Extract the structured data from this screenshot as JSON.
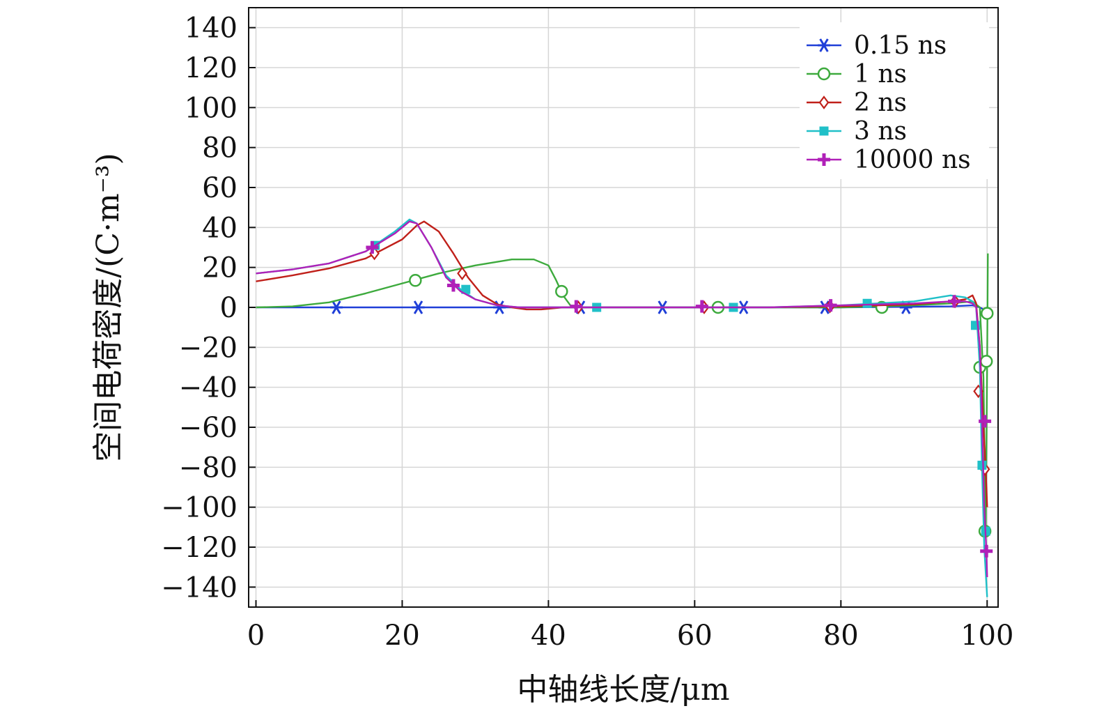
{
  "chart_data": {
    "type": "line",
    "title": "",
    "xlabel": "中轴线长度/μm",
    "ylabel": "空间电荷密度/(C·m⁻³)",
    "xlim": [
      -1,
      101.5
    ],
    "ylim": [
      -150,
      150
    ],
    "xticks": [
      0,
      20,
      40,
      60,
      80,
      100
    ],
    "yticks": [
      140,
      120,
      100,
      80,
      60,
      40,
      20,
      0,
      -20,
      -40,
      -60,
      -80,
      -100,
      -120,
      -140
    ],
    "xtick_labels": [
      "0",
      "20",
      "40",
      "60",
      "80",
      "100"
    ],
    "ytick_labels": [
      "140",
      "120",
      "100",
      "80",
      "60",
      "40",
      "20",
      "0",
      "−20",
      "−40",
      "−60",
      "−80",
      "−100",
      "−120",
      "−140"
    ],
    "grid": true,
    "legend_position": "top-right",
    "series": [
      {
        "name": "0.15 ns",
        "color": "#1f3fd8",
        "marker": "asterisk",
        "x": [
          0,
          20,
          40,
          60,
          80,
          95,
          98,
          99,
          99.5,
          100
        ],
        "y": [
          0,
          0,
          0,
          0,
          0,
          0.5,
          1,
          0,
          -1,
          0
        ],
        "markers_x": [
          11,
          22.2,
          33.3,
          44.4,
          55.6,
          66.7,
          77.8,
          88.9
        ],
        "markers_y": [
          0,
          0,
          0,
          0,
          0,
          0,
          0,
          0
        ]
      },
      {
        "name": "1 ns",
        "color": "#3daa3d",
        "marker": "circle",
        "x": [
          0,
          5,
          10,
          15,
          20,
          25,
          30,
          35,
          38,
          40,
          41,
          42,
          43,
          44,
          50,
          60,
          70,
          80,
          90,
          95,
          98,
          99,
          99.5,
          99.8,
          100,
          100.1
        ],
        "y": [
          0,
          0.5,
          2.5,
          7,
          12,
          17,
          21,
          24,
          24,
          21,
          14,
          6,
          1,
          0,
          0,
          0,
          0,
          0,
          1,
          2,
          3,
          0,
          -35,
          -112,
          -27,
          27
        ],
        "markers_x": [
          21.8,
          41.8,
          63.2,
          85.6,
          99,
          99.7,
          99.9,
          100
        ],
        "markers_y": [
          13.5,
          8,
          0,
          0,
          -30,
          -112,
          -27,
          -3
        ]
      },
      {
        "name": "2 ns",
        "color": "#c0201a",
        "marker": "diamond",
        "x": [
          0,
          5,
          10,
          15,
          20,
          22,
          23,
          25,
          27,
          29,
          31,
          33,
          35,
          37,
          39,
          42,
          50,
          60,
          70,
          80,
          90,
          95,
          97,
          98,
          98.5,
          99,
          99.5,
          99.8,
          100
        ],
        "y": [
          13,
          16,
          19.5,
          24.5,
          34,
          41,
          43,
          38,
          27,
          15,
          6,
          1.5,
          0,
          -1,
          -1,
          0,
          0,
          0,
          0,
          0.5,
          1.5,
          3,
          4,
          6,
          2,
          -20,
          -60,
          -81,
          -100
        ],
        "markers_x": [
          16.2,
          28.2,
          44.1,
          61.3,
          78.5,
          95.6,
          98.8,
          99.7
        ],
        "markers_y": [
          27,
          17,
          0,
          0,
          0.5,
          3,
          -42,
          -81
        ]
      },
      {
        "name": "3 ns",
        "color": "#20c0c8",
        "marker": "square",
        "x": [
          0,
          5,
          10,
          15,
          19,
          21,
          22,
          24,
          26,
          28,
          30,
          33,
          36,
          40,
          50,
          60,
          70,
          80,
          90,
          95,
          97,
          98,
          98.5,
          99,
          99.3,
          99.6,
          100
        ],
        "y": [
          17,
          19,
          22,
          28,
          38,
          44,
          42,
          30,
          16,
          9,
          4,
          1,
          0,
          0,
          0,
          0,
          0,
          1,
          3,
          6,
          5,
          3,
          0,
          -30,
          -80,
          -120,
          -145
        ],
        "markers_x": [
          16.3,
          28.7,
          46.6,
          65.3,
          83.6,
          98.4,
          99.3,
          99.8
        ],
        "markers_y": [
          31,
          9,
          0,
          0,
          2,
          -9,
          -79,
          -112
        ]
      },
      {
        "name": "10000 ns",
        "color": "#b020b8",
        "marker": "plus",
        "x": [
          0,
          5,
          10,
          15,
          19,
          21,
          22,
          24,
          26,
          28,
          30,
          33,
          36,
          40,
          50,
          60,
          70,
          80,
          90,
          95,
          97,
          98,
          98.5,
          99,
          99.3,
          99.6,
          99.9,
          100
        ],
        "y": [
          17,
          19,
          22,
          28,
          37,
          43,
          42,
          30,
          15,
          8,
          4,
          1,
          0,
          0,
          0,
          0,
          0,
          1,
          2,
          3,
          3,
          2,
          0,
          -20,
          -57,
          -100,
          -122,
          -135
        ],
        "markers_x": [
          15.9,
          27,
          43.8,
          61,
          78.6,
          95.5,
          99.7,
          99.9
        ],
        "markers_y": [
          30,
          11,
          0.5,
          0.5,
          1,
          3,
          -57,
          -122
        ]
      }
    ]
  }
}
